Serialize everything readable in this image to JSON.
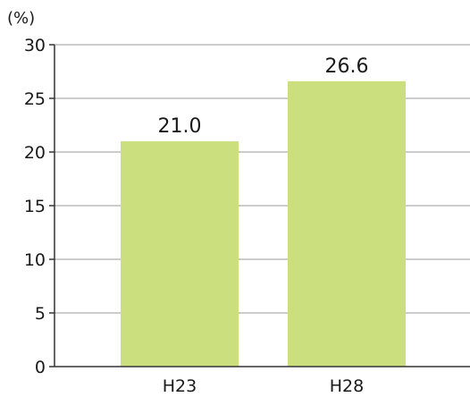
{
  "chart_data": {
    "type": "bar",
    "title": "",
    "xlabel": "",
    "ylabel": "(%)",
    "ylim": [
      0,
      30
    ],
    "yticks": [
      0,
      5,
      10,
      15,
      20,
      25,
      30
    ],
    "grid": true,
    "categories": [
      "H23",
      "H28"
    ],
    "values": [
      21.0,
      26.6
    ],
    "value_labels": [
      "21.0",
      "26.6"
    ],
    "colors": {
      "bar": "#cbdf7f",
      "grid": "#999999",
      "axis": "#333333"
    }
  }
}
